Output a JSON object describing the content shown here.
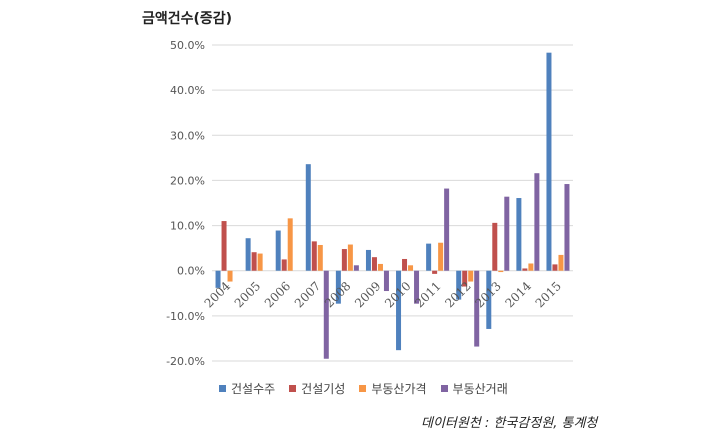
{
  "chart_data": {
    "type": "bar",
    "title": "금액건수(증감)",
    "categories": [
      "2004",
      "2005",
      "2006",
      "2007",
      "2008",
      "2009",
      "2010",
      "2011",
      "2012",
      "2013",
      "2014",
      "2015"
    ],
    "series": [
      {
        "name": "건설수주",
        "color": "#4f81bd",
        "values": [
          -3.8,
          7.2,
          8.9,
          23.6,
          -7.3,
          4.6,
          -17.6,
          6.0,
          -6.4,
          -12.9,
          16.1,
          48.3
        ]
      },
      {
        "name": "건설기성",
        "color": "#c0504d",
        "values": [
          11.0,
          4.1,
          2.5,
          6.5,
          4.8,
          3.0,
          2.6,
          -0.7,
          -3.5,
          10.6,
          0.5,
          1.4
        ]
      },
      {
        "name": "부동산가격",
        "color": "#f79646",
        "values": [
          -2.4,
          3.8,
          11.6,
          5.7,
          5.8,
          1.5,
          1.2,
          6.2,
          -2.4,
          -0.3,
          1.6,
          3.5
        ]
      },
      {
        "name": "부동산거래",
        "color": "#8064a2",
        "values": [
          0.0,
          0.0,
          0.0,
          -19.5,
          1.2,
          -4.5,
          -7.3,
          18.2,
          -16.8,
          16.4,
          21.6,
          19.2
        ]
      }
    ],
    "ylim": [
      -20,
      50
    ],
    "ytick_step": 10,
    "ytick_labels": [
      "-20.0%",
      "-10.0%",
      "0.0%",
      "10.0%",
      "20.0%",
      "30.0%",
      "40.0%",
      "50.0%"
    ],
    "xlabel": "",
    "ylabel": "",
    "grid": true,
    "legend_position": "bottom"
  },
  "source_note": "데이터원천 : 한국감정원, 통계청"
}
